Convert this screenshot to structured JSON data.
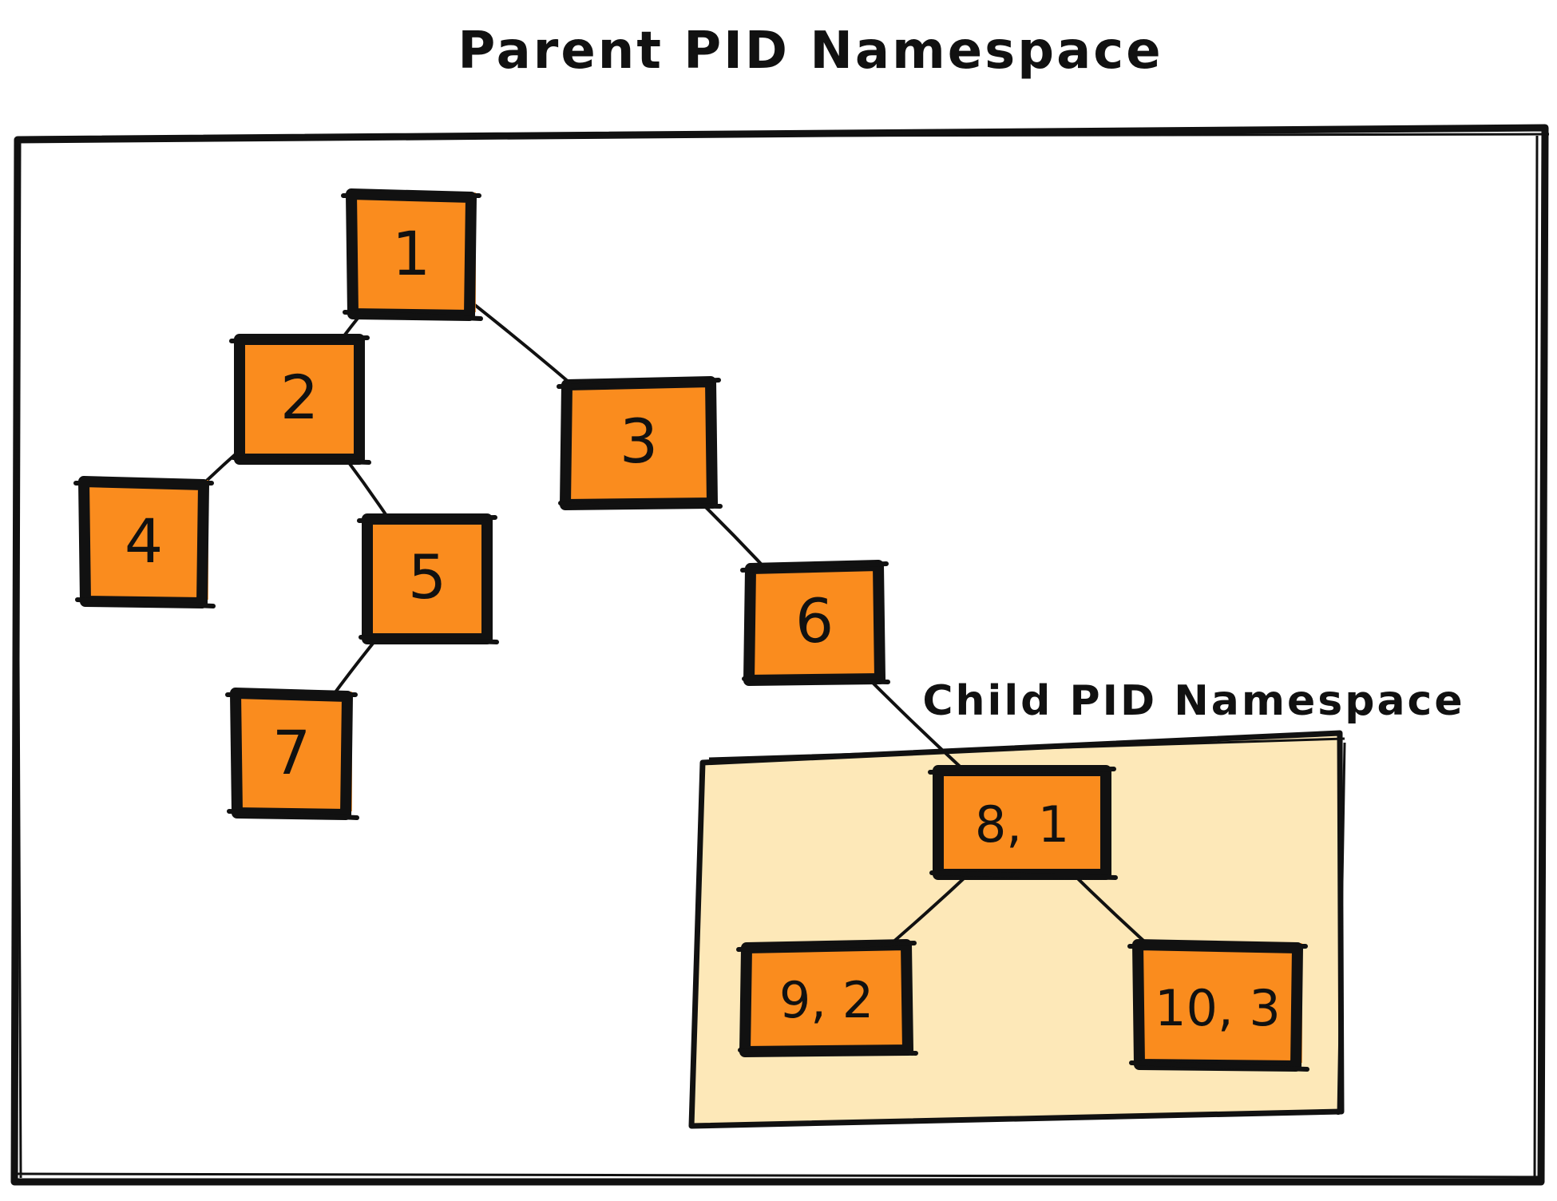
{
  "title": "Parent PID Namespace",
  "child_title": "Child PID Namespace",
  "nodes": [
    {
      "id": "1",
      "label": "1"
    },
    {
      "id": "2",
      "label": "2"
    },
    {
      "id": "3",
      "label": "3"
    },
    {
      "id": "4",
      "label": "4"
    },
    {
      "id": "5",
      "label": "5"
    },
    {
      "id": "6",
      "label": "6"
    },
    {
      "id": "7",
      "label": "7"
    },
    {
      "id": "8",
      "label": "8, 1"
    },
    {
      "id": "9",
      "label": "9, 2"
    },
    {
      "id": "10",
      "label": "10, 3"
    }
  ],
  "edges": [
    {
      "from": "1",
      "to": "2"
    },
    {
      "from": "1",
      "to": "3"
    },
    {
      "from": "2",
      "to": "4"
    },
    {
      "from": "2",
      "to": "5"
    },
    {
      "from": "5",
      "to": "7"
    },
    {
      "from": "3",
      "to": "6"
    },
    {
      "from": "6",
      "to": "8"
    },
    {
      "from": "8",
      "to": "9"
    },
    {
      "from": "8",
      "to": "10"
    }
  ],
  "colors": {
    "node_fill": "#FA8C1E",
    "node_border": "#111111",
    "child_box_fill": "#FDE8B8",
    "line": "#111111"
  }
}
